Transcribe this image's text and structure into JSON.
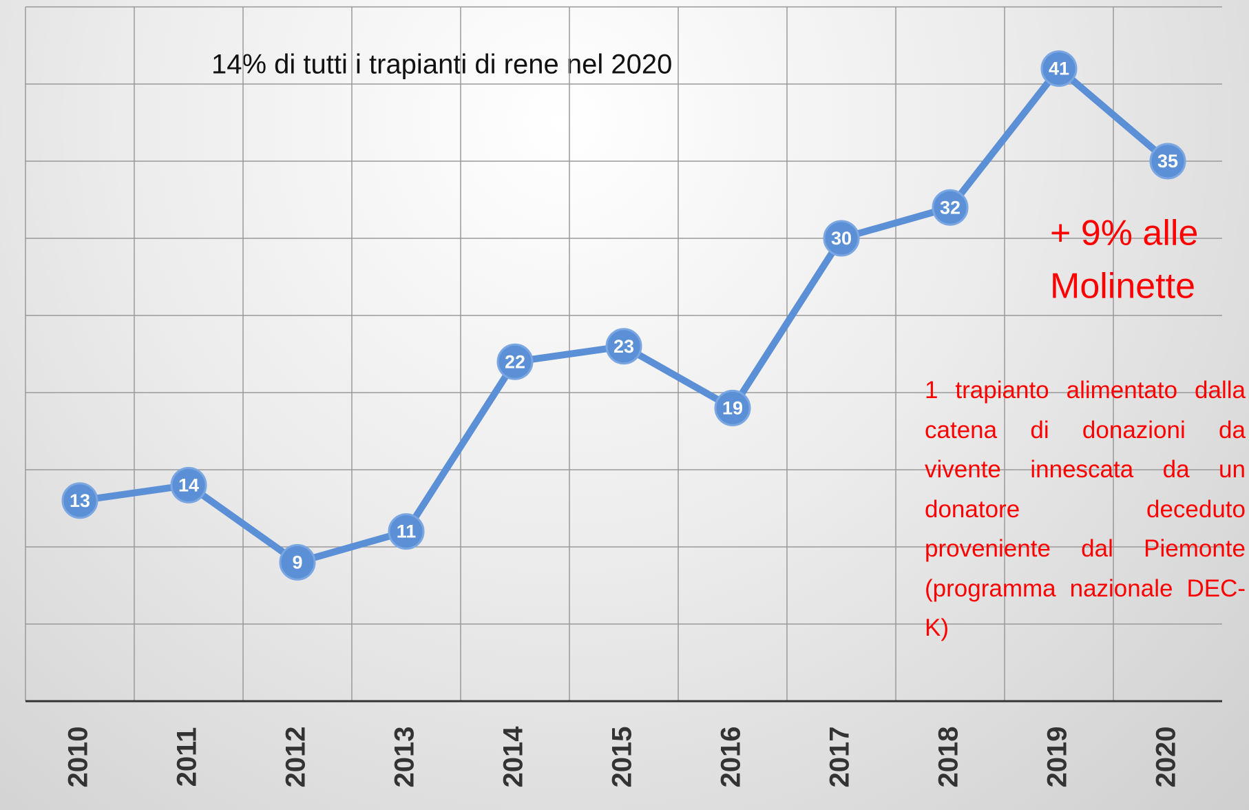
{
  "chart_data": {
    "type": "line",
    "title": "14% di tutti i trapianti di rene nel 2020",
    "categories": [
      "2010",
      "2011",
      "2012",
      "2013",
      "2014",
      "2015",
      "2016",
      "2017",
      "2018",
      "2019",
      "2020"
    ],
    "series": [
      {
        "color": "#5b8fd6",
        "values": [
          13,
          14,
          9,
          11,
          22,
          23,
          19,
          30,
          32,
          41,
          35
        ]
      }
    ],
    "ylim": [
      0,
      45
    ],
    "yticks": [
      0,
      5,
      10,
      15,
      20,
      25,
      30,
      35,
      40,
      45
    ],
    "grid": true,
    "annotations": [
      {
        "lines": [
          "+ 9% alle",
          "Molinette"
        ],
        "color": "#ff0000"
      },
      {
        "text": "1 trapianto alimentato dalla catena di donazioni da vivente innescata da un donatore deceduto proveniente dal Piemonte (programma nazionale DEC-K)",
        "color": "#ff0000"
      }
    ]
  }
}
